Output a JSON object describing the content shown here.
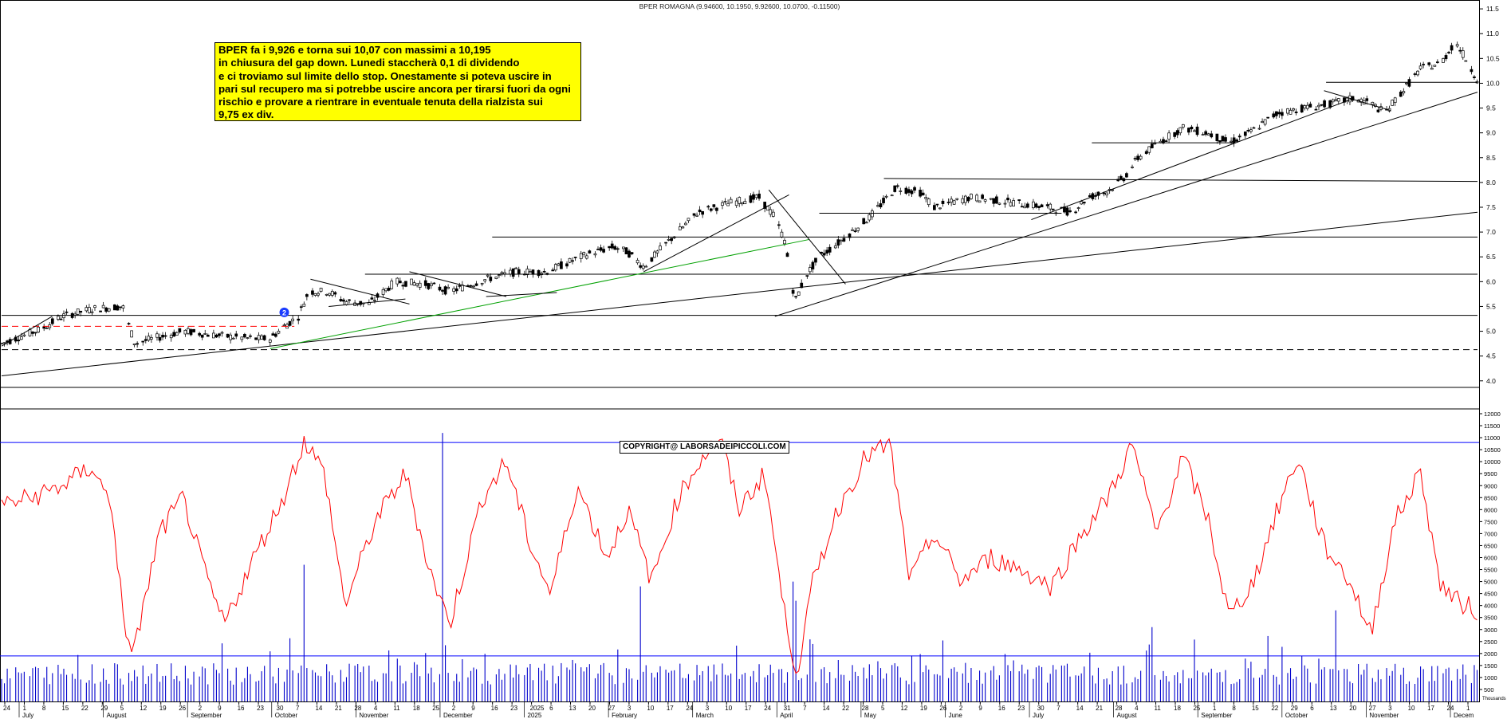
{
  "header": {
    "title": "BPER ROMAGNA (9.94600, 10.1950, 9.92600, 10.0700, -0.11500)"
  },
  "annotation": {
    "lines": [
      "BPER fa i 9,926 e torna sui 10,07 con massimi a 10,195",
      "in chiusura del gap down. Lunedi staccherà 0,1 di dividendo",
      "e ci troviamo sul limite dello stop. Onestamente si poteva uscire in",
      "pari sul recupero ma si potrebbe uscire ancora per tirarsi fuori da ogni",
      "rischio e provare a rientrare in eventuale tenuta della rialzista sui",
      "9,75 ex div."
    ]
  },
  "copyright": "COPYRIGHT@ LABORSADEIPICCOLI.COM",
  "marker": "2",
  "colors": {
    "up": "#ffffff",
    "down": "#000000",
    "oscillator": "#ff0000",
    "volume": "#0000cc",
    "level": "#0000ff",
    "trend_green": "#00a000",
    "dashed_red": "#ff0000",
    "note_bg": "#ffff00"
  },
  "chart_data": {
    "type": "candlestick",
    "price_axis": {
      "ticks": [
        4.0,
        4.5,
        5.0,
        5.5,
        6.0,
        6.5,
        7.0,
        7.5,
        8.0,
        8.5,
        9.0,
        9.5,
        10.0,
        10.5,
        11.0,
        11.5
      ],
      "range": [
        3.9,
        11.55
      ]
    },
    "lower_axis": {
      "ticks": [
        500,
        1000,
        1500,
        2000,
        2500,
        3000,
        3500,
        4000,
        4500,
        5000,
        5500,
        6000,
        6500,
        7000,
        7500,
        8000,
        8500,
        9000,
        9500,
        10000,
        10500,
        11000,
        11500,
        12000
      ],
      "range": [
        0,
        12000
      ],
      "bottom_label": "Thousands"
    },
    "oscillator_levels": [
      10800,
      1900
    ],
    "x_axis": {
      "day_labels": [
        "24",
        "1",
        "8",
        "15",
        "22",
        "29",
        "5",
        "12",
        "19",
        "26",
        "2",
        "9",
        "16",
        "23",
        "30",
        "7",
        "14",
        "21",
        "28",
        "4",
        "11",
        "18",
        "25",
        "2",
        "9",
        "16",
        "23",
        "2025",
        "6",
        "13",
        "20",
        "27",
        "3",
        "10",
        "17",
        "24",
        "3",
        "10",
        "17",
        "24",
        "31",
        "7",
        "14",
        "22",
        "28",
        "5",
        "12",
        "19",
        "26",
        "2",
        "9",
        "16",
        "23",
        "30",
        "7",
        "14",
        "21",
        "28",
        "4",
        "11",
        "18",
        "25",
        "1",
        "8",
        "15",
        "22",
        "29",
        "6",
        "13",
        "20",
        "27",
        "3",
        "10",
        "17",
        "24",
        "1"
      ],
      "month_labels": [
        "July",
        "August",
        "September",
        "October",
        "November",
        "December",
        "2025",
        "February",
        "March",
        "April",
        "May",
        "June",
        "July",
        "August",
        "September",
        "October",
        "November",
        "Decem"
      ]
    },
    "price_series_anchors": [
      {
        "d": 0,
        "p": 4.75
      },
      {
        "d": 20,
        "p": 5.05
      },
      {
        "d": 30,
        "p": 5.3
      },
      {
        "d": 45,
        "p": 5.45
      },
      {
        "d": 60,
        "p": 5.5
      },
      {
        "d": 66,
        "p": 4.75
      },
      {
        "d": 75,
        "p": 4.85
      },
      {
        "d": 90,
        "p": 5.0
      },
      {
        "d": 110,
        "p": 4.9
      },
      {
        "d": 125,
        "p": 4.85
      },
      {
        "d": 133,
        "p": 4.85
      },
      {
        "d": 140,
        "p": 5.1
      },
      {
        "d": 147,
        "p": 5.3
      },
      {
        "d": 152,
        "p": 5.8
      },
      {
        "d": 162,
        "p": 5.8
      },
      {
        "d": 170,
        "p": 5.6
      },
      {
        "d": 182,
        "p": 5.55
      },
      {
        "d": 195,
        "p": 6.0
      },
      {
        "d": 210,
        "p": 5.95
      },
      {
        "d": 222,
        "p": 5.8
      },
      {
        "d": 240,
        "p": 6.05
      },
      {
        "d": 255,
        "p": 6.2
      },
      {
        "d": 270,
        "p": 6.2
      },
      {
        "d": 290,
        "p": 6.55
      },
      {
        "d": 303,
        "p": 6.7
      },
      {
        "d": 310,
        "p": 6.6
      },
      {
        "d": 318,
        "p": 6.3
      },
      {
        "d": 330,
        "p": 6.8
      },
      {
        "d": 345,
        "p": 7.4
      },
      {
        "d": 362,
        "p": 7.6
      },
      {
        "d": 375,
        "p": 7.7
      },
      {
        "d": 383,
        "p": 7.3
      },
      {
        "d": 388,
        "p": 6.8
      },
      {
        "d": 393,
        "p": 5.6
      },
      {
        "d": 398,
        "p": 6.1
      },
      {
        "d": 405,
        "p": 6.5
      },
      {
        "d": 415,
        "p": 6.8
      },
      {
        "d": 430,
        "p": 7.3
      },
      {
        "d": 443,
        "p": 7.9
      },
      {
        "d": 455,
        "p": 7.8
      },
      {
        "d": 462,
        "p": 7.5
      },
      {
        "d": 480,
        "p": 7.7
      },
      {
        "d": 500,
        "p": 7.6
      },
      {
        "d": 518,
        "p": 7.5
      },
      {
        "d": 530,
        "p": 7.4
      },
      {
        "d": 538,
        "p": 7.7
      },
      {
        "d": 547,
        "p": 7.8
      },
      {
        "d": 556,
        "p": 8.1
      },
      {
        "d": 563,
        "p": 8.5
      },
      {
        "d": 573,
        "p": 8.8
      },
      {
        "d": 585,
        "p": 9.1
      },
      {
        "d": 597,
        "p": 9.0
      },
      {
        "d": 608,
        "p": 8.8
      },
      {
        "d": 618,
        "p": 9.0
      },
      {
        "d": 632,
        "p": 9.4
      },
      {
        "d": 645,
        "p": 9.5
      },
      {
        "d": 660,
        "p": 9.6
      },
      {
        "d": 670,
        "p": 9.7
      },
      {
        "d": 678,
        "p": 9.6
      },
      {
        "d": 685,
        "p": 9.4
      },
      {
        "d": 693,
        "p": 9.8
      },
      {
        "d": 703,
        "p": 10.3
      },
      {
        "d": 713,
        "p": 10.4
      },
      {
        "d": 720,
        "p": 10.85
      },
      {
        "d": 725,
        "p": 10.5
      },
      {
        "d": 731,
        "p": 10.07
      }
    ],
    "oscillator_anchors": [
      {
        "d": 0,
        "v": 8200
      },
      {
        "d": 15,
        "v": 8500
      },
      {
        "d": 30,
        "v": 9000
      },
      {
        "d": 45,
        "v": 9800
      },
      {
        "d": 55,
        "v": 8000
      },
      {
        "d": 62,
        "v": 2000
      },
      {
        "d": 68,
        "v": 3000
      },
      {
        "d": 78,
        "v": 7000
      },
      {
        "d": 90,
        "v": 8500
      },
      {
        "d": 100,
        "v": 5500
      },
      {
        "d": 110,
        "v": 3200
      },
      {
        "d": 125,
        "v": 6000
      },
      {
        "d": 140,
        "v": 8600
      },
      {
        "d": 150,
        "v": 10900
      },
      {
        "d": 160,
        "v": 9500
      },
      {
        "d": 170,
        "v": 4000
      },
      {
        "d": 185,
        "v": 7500
      },
      {
        "d": 200,
        "v": 9500
      },
      {
        "d": 212,
        "v": 5500
      },
      {
        "d": 222,
        "v": 3200
      },
      {
        "d": 238,
        "v": 8500
      },
      {
        "d": 250,
        "v": 10000
      },
      {
        "d": 262,
        "v": 6500
      },
      {
        "d": 272,
        "v": 4500
      },
      {
        "d": 285,
        "v": 9000
      },
      {
        "d": 300,
        "v": 6000
      },
      {
        "d": 310,
        "v": 8000
      },
      {
        "d": 322,
        "v": 5000
      },
      {
        "d": 335,
        "v": 8500
      },
      {
        "d": 347,
        "v": 10200
      },
      {
        "d": 356,
        "v": 11000
      },
      {
        "d": 365,
        "v": 8000
      },
      {
        "d": 378,
        "v": 9500
      },
      {
        "d": 388,
        "v": 3500
      },
      {
        "d": 394,
        "v": 1200
      },
      {
        "d": 402,
        "v": 5000
      },
      {
        "d": 414,
        "v": 8000
      },
      {
        "d": 428,
        "v": 10200
      },
      {
        "d": 440,
        "v": 10700
      },
      {
        "d": 450,
        "v": 5000
      },
      {
        "d": 462,
        "v": 7000
      },
      {
        "d": 475,
        "v": 5000
      },
      {
        "d": 490,
        "v": 6000
      },
      {
        "d": 505,
        "v": 5500
      },
      {
        "d": 520,
        "v": 4800
      },
      {
        "d": 535,
        "v": 7000
      },
      {
        "d": 548,
        "v": 8500
      },
      {
        "d": 560,
        "v": 10700
      },
      {
        "d": 572,
        "v": 7000
      },
      {
        "d": 585,
        "v": 10200
      },
      {
        "d": 598,
        "v": 7500
      },
      {
        "d": 608,
        "v": 3500
      },
      {
        "d": 620,
        "v": 5000
      },
      {
        "d": 632,
        "v": 8000
      },
      {
        "d": 642,
        "v": 10200
      },
      {
        "d": 655,
        "v": 6500
      },
      {
        "d": 668,
        "v": 5000
      },
      {
        "d": 678,
        "v": 2800
      },
      {
        "d": 690,
        "v": 7500
      },
      {
        "d": 703,
        "v": 9600
      },
      {
        "d": 712,
        "v": 5000
      },
      {
        "d": 720,
        "v": 4200
      },
      {
        "d": 731,
        "v": 3800
      }
    ],
    "volume_base": 700,
    "volume_spikes": [
      {
        "d": 150,
        "v": 5700
      },
      {
        "d": 218,
        "v": 11200
      },
      {
        "d": 316,
        "v": 4800
      },
      {
        "d": 392,
        "v": 5000
      },
      {
        "d": 394,
        "v": 4200
      },
      {
        "d": 558,
        "v": 6300
      },
      {
        "d": 570,
        "v": 3100
      },
      {
        "d": 661,
        "v": 3800
      }
    ],
    "horizontal_lines": [
      {
        "y": 5.32,
        "d0": 0,
        "d1": 731
      },
      {
        "y": 6.15,
        "d0": 180,
        "d1": 731
      },
      {
        "y": 6.9,
        "d0": 243,
        "d1": 731
      },
      {
        "y": 7.38,
        "d0": 405,
        "d1": 525
      },
      {
        "y": 8.08,
        "d0": 437,
        "d1": 731,
        "y_end": 8.02
      },
      {
        "y": 8.8,
        "d0": 540,
        "d1": 610
      },
      {
        "y": 10.02,
        "d0": 656,
        "d1": 731
      }
    ],
    "dashed_lines": [
      {
        "y": 4.63,
        "d0": 0,
        "d1": 731,
        "color": "black"
      },
      {
        "y": 5.1,
        "d0": 0,
        "d1": 145,
        "color": "red"
      }
    ],
    "trendlines": [
      {
        "d0": 0,
        "y0": 4.1,
        "d1": 731,
        "y1": 7.4,
        "color": "black"
      },
      {
        "d0": 0,
        "y0": 4.7,
        "d1": 25,
        "y1": 5.3,
        "color": "black"
      },
      {
        "d0": 133,
        "y0": 4.65,
        "d1": 400,
        "y1": 6.85,
        "color": "green"
      },
      {
        "d0": 383,
        "y0": 5.3,
        "d1": 731,
        "y1": 9.82,
        "color": "black"
      },
      {
        "d0": 510,
        "y0": 7.25,
        "d1": 670,
        "y1": 9.7,
        "color": "black"
      },
      {
        "d0": 153,
        "y0": 6.05,
        "d1": 202,
        "y1": 5.55,
        "color": "black"
      },
      {
        "d0": 162,
        "y0": 5.5,
        "d1": 200,
        "y1": 5.65,
        "color": "black"
      },
      {
        "d0": 202,
        "y0": 6.2,
        "d1": 250,
        "y1": 5.7,
        "color": "black"
      },
      {
        "d0": 240,
        "y0": 5.7,
        "d1": 275,
        "y1": 5.78,
        "color": "black"
      },
      {
        "d0": 318,
        "y0": 6.2,
        "d1": 390,
        "y1": 7.75,
        "color": "black"
      },
      {
        "d0": 380,
        "y0": 7.85,
        "d1": 418,
        "y1": 5.95,
        "color": "black"
      },
      {
        "d0": 655,
        "y0": 9.85,
        "d1": 688,
        "y1": 9.45,
        "color": "black"
      }
    ]
  }
}
